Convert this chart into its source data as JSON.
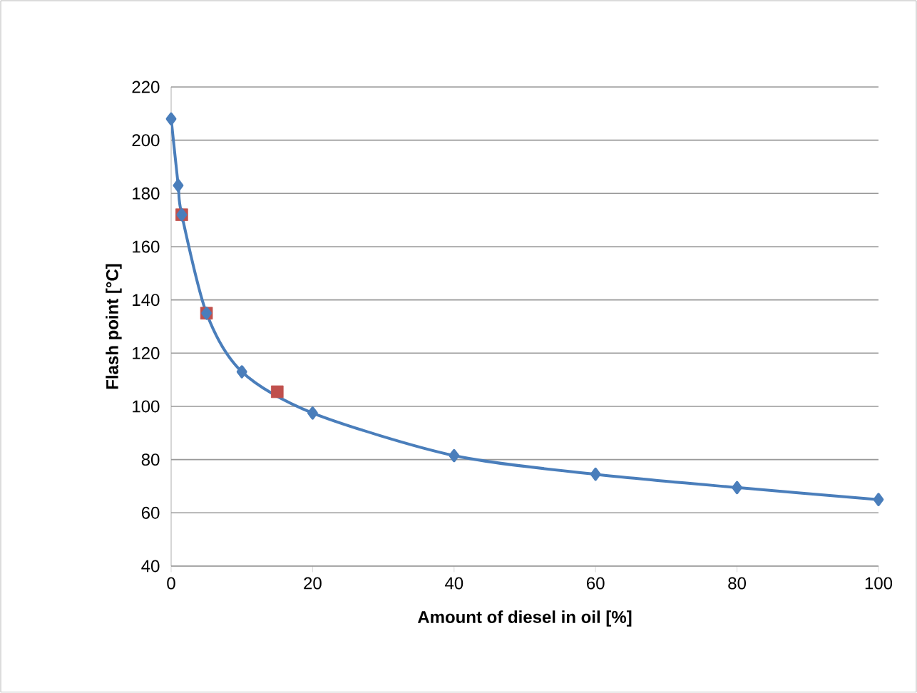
{
  "chart_data": {
    "type": "line",
    "xlabel": "Amount of diesel in oil [%]",
    "ylabel": "Flash point [°C]",
    "xlim": [
      0,
      100
    ],
    "xticks": [
      0,
      20,
      40,
      60,
      80,
      100
    ],
    "ylim": [
      40,
      220
    ],
    "yticks": [
      40,
      60,
      80,
      100,
      120,
      140,
      160,
      180,
      200,
      220
    ],
    "grid": "y",
    "series": [
      {
        "type": "scatter",
        "color": "#c0504d",
        "marker": "square",
        "x": [
          1.5,
          5,
          15
        ],
        "values": [
          172,
          135,
          105.5
        ]
      },
      {
        "color": "#4a7ebb",
        "marker": "diamond",
        "line_style": "solid",
        "x": [
          0,
          1,
          1.5,
          5,
          10,
          20,
          40,
          60,
          80,
          100
        ],
        "values": [
          208,
          183,
          172,
          135,
          113,
          97.5,
          81.5,
          74.5,
          69.5,
          65
        ]
      }
    ]
  }
}
